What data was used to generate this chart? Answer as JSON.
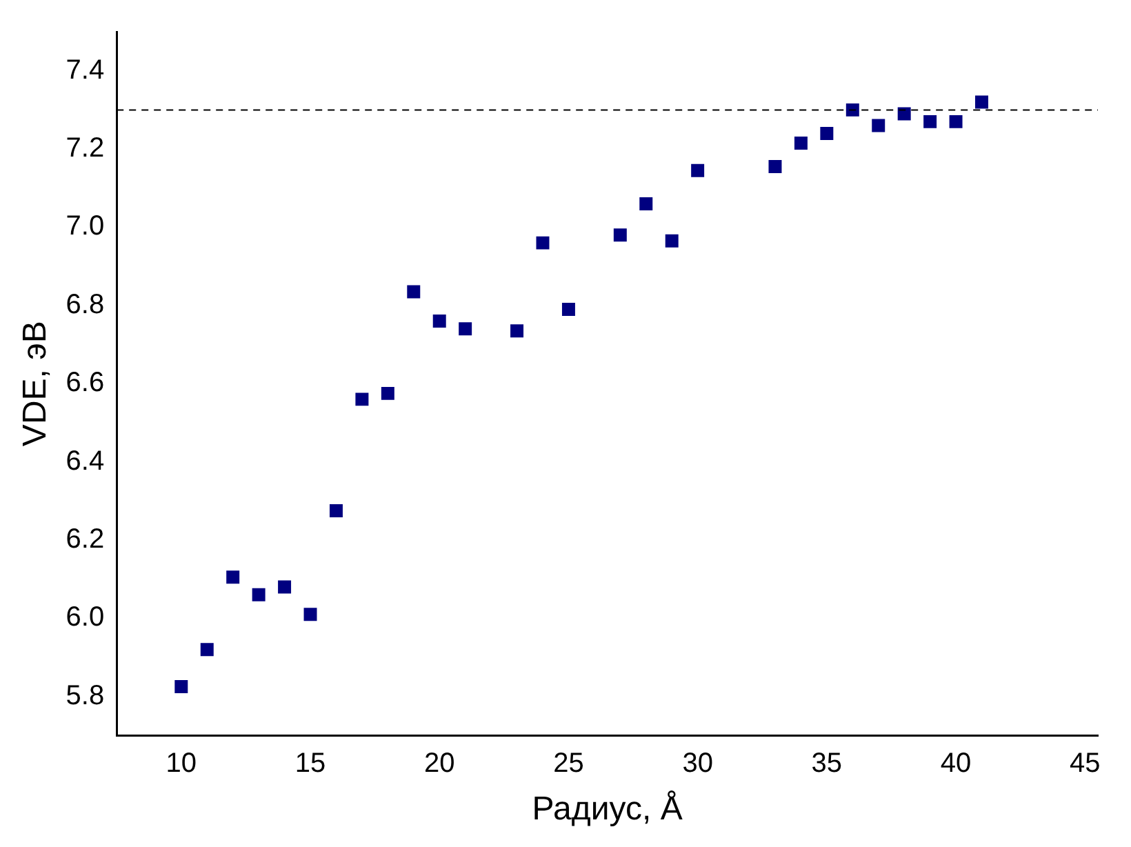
{
  "chart_data": {
    "type": "scatter",
    "xlabel": "Радиус, Å",
    "ylabel": "VDE, эВ",
    "x": [
      10,
      11,
      12,
      13,
      14,
      15,
      16,
      17,
      18,
      19,
      20,
      21,
      23,
      24,
      25,
      27,
      28,
      29,
      30,
      33,
      34,
      35,
      36,
      37,
      38,
      39,
      40,
      41
    ],
    "series": [
      {
        "color": "#000080",
        "values": [
          5.825,
          5.92,
          6.105,
          6.06,
          6.08,
          6.01,
          6.275,
          6.56,
          6.575,
          6.835,
          6.76,
          6.74,
          6.735,
          6.96,
          6.79,
          6.98,
          7.06,
          6.965,
          7.145,
          7.155,
          7.215,
          7.24,
          7.3,
          7.26,
          7.29,
          7.27,
          7.27,
          7.32
        ]
      }
    ],
    "xlim": [
      7.5,
      45.5
    ],
    "xticks": [
      10,
      15,
      20,
      25,
      30,
      35,
      40,
      45
    ],
    "ylim": [
      5.7,
      7.5
    ],
    "yticks": [
      5.8,
      {
        "value": 6,
        "label": "6.0"
      },
      6.2,
      6.4,
      6.6,
      6.8,
      {
        "value": 7,
        "label": "7.0"
      },
      7.2,
      7.4
    ],
    "ref_lines": [
      {
        "axis": "y",
        "value": 7.3,
        "line_style": "dashed",
        "color": "#000000"
      }
    ],
    "marker": "square",
    "grid": false,
    "legend": false
  }
}
